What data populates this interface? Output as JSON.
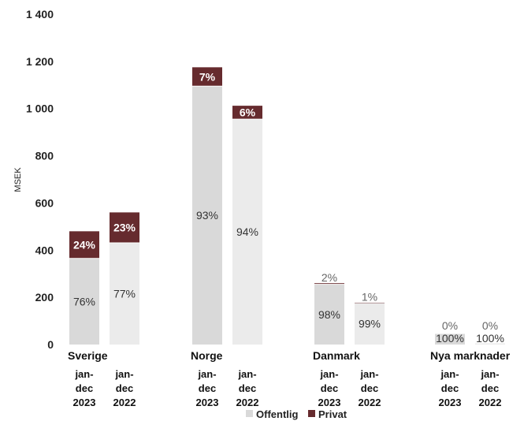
{
  "chart_data": {
    "type": "bar",
    "stacked": true,
    "ylabel": "MSEK",
    "ylim": [
      0,
      1400
    ],
    "yticks": [
      0,
      200,
      400,
      600,
      800,
      1000,
      1200,
      1400
    ],
    "ytick_labels": [
      "0",
      "200",
      "400",
      "600",
      "800",
      "1 000",
      "1 200",
      "1 400"
    ],
    "grid": false,
    "legend_placement": "bottom",
    "groups": [
      {
        "name": "Sverige",
        "bars": [
          {
            "period": [
              "jan-",
              "dec",
              "2023"
            ],
            "offentlig": 365,
            "privat": 115,
            "offentlig_label": "76%",
            "privat_label": "24%"
          },
          {
            "period": [
              "jan-",
              "dec",
              "2022"
            ],
            "offentlig": 431,
            "privat": 129,
            "offentlig_label": "77%",
            "privat_label": "23%"
          }
        ]
      },
      {
        "name": "Norge",
        "bars": [
          {
            "period": [
              "jan-",
              "dec",
              "2023"
            ],
            "offentlig": 1095,
            "privat": 80,
            "offentlig_label": "93%",
            "privat_label": "7%"
          },
          {
            "period": [
              "jan-",
              "dec",
              "2022"
            ],
            "offentlig": 955,
            "privat": 57,
            "offentlig_label": "94%",
            "privat_label": "6%"
          }
        ]
      },
      {
        "name": "Danmark",
        "bars": [
          {
            "period": [
              "jan-",
              "dec",
              "2023"
            ],
            "offentlig": 255,
            "privat": 5,
            "offentlig_label": "98%",
            "privat_label": "2%"
          },
          {
            "period": [
              "jan-",
              "dec",
              "2022"
            ],
            "offentlig": 177,
            "privat": 2,
            "offentlig_label": "99%",
            "privat_label": "1%"
          }
        ]
      },
      {
        "name": "Nya marknader",
        "bars": [
          {
            "period": [
              "jan-",
              "dec",
              "2023"
            ],
            "offentlig": 45,
            "privat": 0,
            "offentlig_label": "100%",
            "privat_label": "0%"
          },
          {
            "period": [
              "jan-",
              "dec",
              "2022"
            ],
            "offentlig": 5,
            "privat": 0,
            "offentlig_label": "100%",
            "privat_label": "0%"
          }
        ]
      }
    ],
    "series": [
      {
        "name": "Offentlig",
        "color": "#d9d9d9",
        "color_alt": "#ebebeb"
      },
      {
        "name": "Privat",
        "color": "#662b2e"
      }
    ]
  }
}
